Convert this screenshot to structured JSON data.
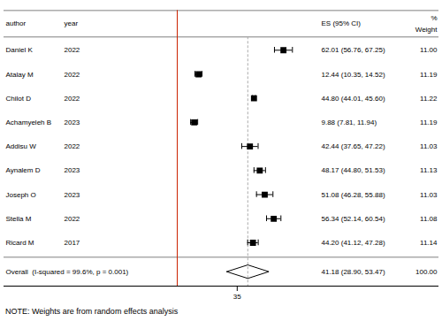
{
  "chart_data": {
    "type": "forest",
    "author_header": "author",
    "year_header": "year",
    "value_header": "ES (95% CI)",
    "weight_header": [
      "%",
      "Weight"
    ],
    "categories": [
      "Daniel K",
      "Atalay M",
      "Chilot D",
      "Achamyeleh B",
      "Addisu W",
      "Aynalem D",
      "Joseph O",
      "Stella M",
      "Ricard M"
    ],
    "years": [
      "2022",
      "2022",
      "2022",
      "2023",
      "2022",
      "2023",
      "2023",
      "2022",
      "2017"
    ],
    "values": [
      62.01,
      12.44,
      44.8,
      9.88,
      42.44,
      48.17,
      51.08,
      56.34,
      44.2
    ],
    "ci_low": [
      56.76,
      10.35,
      44.01,
      7.81,
      37.65,
      44.8,
      46.28,
      52.14,
      41.12
    ],
    "ci_high": [
      67.25,
      14.52,
      45.6,
      11.94,
      47.22,
      51.53,
      55.88,
      60.54,
      47.28
    ],
    "value_labels": [
      "62.01 (56.76, 67.25)",
      "12.44 (10.35, 14.52)",
      "44.80 (44.01, 45.60)",
      "9.88 (7.81, 11.94)",
      "42.44 (37.65, 47.22)",
      "48.17 (44.80, 51.53)",
      "51.08 (46.28, 55.88)",
      "56.34 (52.14, 60.54)",
      "44.20 (41.12, 47.28)"
    ],
    "weight_labels": [
      "11.00",
      "11.19",
      "11.22",
      "11.19",
      "11.03",
      "11.13",
      "11.03",
      "11.08",
      "11.14"
    ],
    "overall": {
      "label": "Overall  (I-squared = 99.6%, p = 0.001)",
      "value": 41.18,
      "ci_low": 28.9,
      "ci_high": 53.47,
      "value_label": "41.18 (28.90, 53.47)",
      "weight_label": "100.00"
    },
    "reference_lines": [
      {
        "value": 0,
        "line_style": "solid",
        "color": "#cc2200"
      },
      {
        "value": 41.18,
        "line_style": "dashed",
        "color": "#aaaaaa"
      }
    ],
    "note": "NOTE: Weights are from random effects analysis",
    "marker": "square",
    "xlim": [
      0,
      80
    ],
    "xticks": [
      35
    ],
    "grid": false
  }
}
